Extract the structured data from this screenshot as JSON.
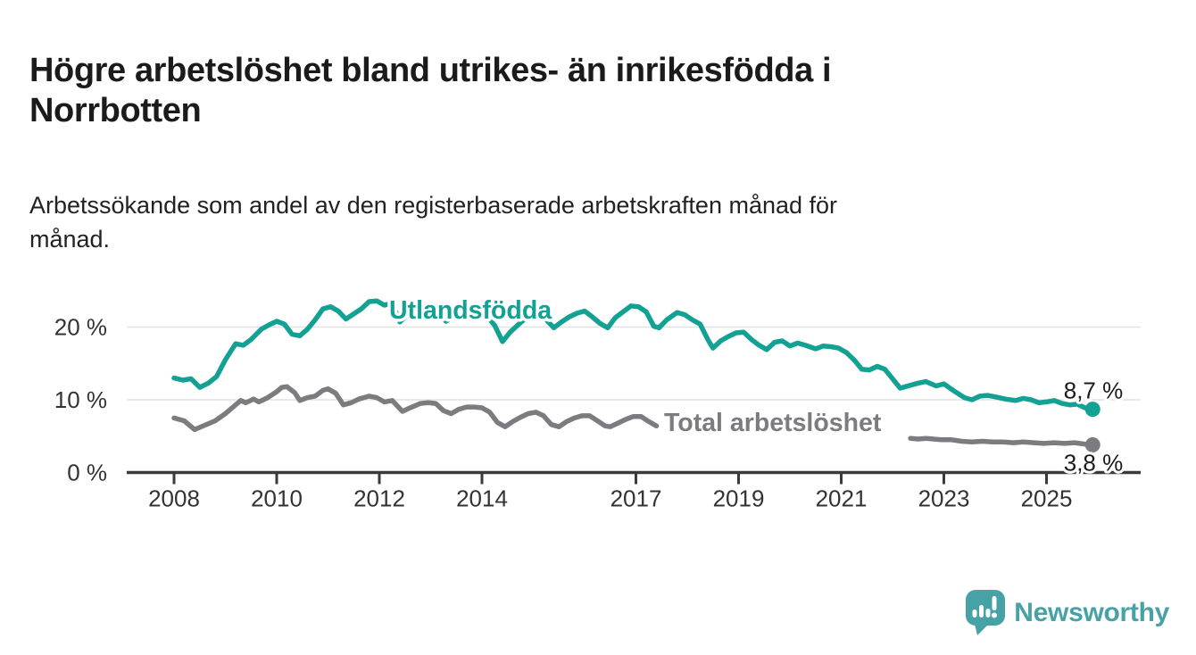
{
  "header": {
    "title_lines": [
      "Högre arbetslöshet bland utrikes- än inrikesfödda i",
      "Norrbotten"
    ],
    "subtitle_lines": [
      "Arbetssökande som andel av den registerbaserade arbetskraften månad för",
      "månad."
    ]
  },
  "footer": {
    "logo_text": "Newsworthy",
    "logo_color": "#47a2a6"
  },
  "chart_data": {
    "type": "line",
    "unit": "%",
    "grid": true,
    "legend_position": "inline-labels",
    "xlim": [
      2007.1,
      2026.8
    ],
    "ylim": [
      0,
      24
    ],
    "x_ticks": [
      {
        "year": 2008,
        "label": "2008"
      },
      {
        "year": 2010,
        "label": "2010"
      },
      {
        "year": 2012,
        "label": "2012"
      },
      {
        "year": 2014,
        "label": "2014"
      },
      {
        "year": 2017,
        "label": "2017"
      },
      {
        "year": 2019,
        "label": "2019"
      },
      {
        "year": 2021,
        "label": "2021"
      },
      {
        "year": 2023,
        "label": "2023"
      },
      {
        "year": 2025,
        "label": "2025"
      }
    ],
    "y_ticks": [
      {
        "value": 0,
        "label": "0 %"
      },
      {
        "value": 10,
        "label": "10 %"
      },
      {
        "value": 20,
        "label": "20 %"
      }
    ],
    "series": [
      {
        "name": "Utlandsfödda",
        "color": "#12a192",
        "end_label": "8,7 %",
        "end_value": 8.7,
        "segments": [
          [
            [
              2008.0,
              13.0
            ],
            [
              2008.17,
              12.7
            ],
            [
              2008.33,
              12.9
            ],
            [
              2008.5,
              11.7
            ],
            [
              2008.67,
              12.3
            ],
            [
              2008.83,
              13.2
            ],
            [
              2009.0,
              15.5
            ],
            [
              2009.2,
              17.7
            ],
            [
              2009.35,
              17.5
            ],
            [
              2009.5,
              18.3
            ],
            [
              2009.7,
              19.7
            ],
            [
              2009.85,
              20.3
            ],
            [
              2010.0,
              20.8
            ],
            [
              2010.15,
              20.4
            ],
            [
              2010.3,
              19.0
            ],
            [
              2010.45,
              18.8
            ],
            [
              2010.6,
              19.7
            ],
            [
              2010.75,
              21.0
            ],
            [
              2010.9,
              22.5
            ],
            [
              2011.05,
              22.8
            ],
            [
              2011.2,
              22.2
            ],
            [
              2011.35,
              21.1
            ],
            [
              2011.5,
              21.8
            ],
            [
              2011.65,
              22.5
            ],
            [
              2011.8,
              23.5
            ],
            [
              2011.95,
              23.6
            ],
            [
              2012.1,
              23.0
            ],
            [
              2012.25,
              23.3
            ],
            [
              2012.4,
              20.7
            ],
            [
              2012.55,
              21.7
            ],
            [
              2012.7,
              22.5
            ],
            [
              2012.85,
              22.9
            ],
            [
              2013.0,
              22.7
            ],
            [
              2013.15,
              21.9
            ],
            [
              2013.3,
              20.8
            ],
            [
              2013.45,
              21.4
            ],
            [
              2013.6,
              22.0
            ],
            [
              2013.8,
              22.4
            ],
            [
              2013.95,
              22.1
            ],
            [
              2014.1,
              21.5
            ],
            [
              2014.25,
              20.2
            ],
            [
              2014.4,
              18.0
            ],
            [
              2014.55,
              19.3
            ],
            [
              2014.7,
              20.3
            ],
            [
              2014.85,
              21.2
            ],
            [
              2015.0,
              22.4
            ],
            [
              2015.2,
              21.4
            ],
            [
              2015.4,
              19.9
            ],
            [
              2015.55,
              20.7
            ],
            [
              2015.7,
              21.4
            ],
            [
              2015.85,
              21.9
            ],
            [
              2016.0,
              22.2
            ],
            [
              2016.15,
              21.4
            ],
            [
              2016.3,
              20.5
            ],
            [
              2016.45,
              19.9
            ],
            [
              2016.6,
              21.3
            ],
            [
              2016.75,
              22.1
            ],
            [
              2016.9,
              22.9
            ],
            [
              2017.05,
              22.8
            ],
            [
              2017.2,
              22.1
            ],
            [
              2017.35,
              20.1
            ],
            [
              2017.45,
              19.9
            ],
            [
              2017.6,
              21.0
            ],
            [
              2017.8,
              22.0
            ],
            [
              2017.95,
              21.7
            ],
            [
              2018.1,
              21.0
            ],
            [
              2018.25,
              20.4
            ],
            [
              2018.4,
              18.3
            ],
            [
              2018.5,
              17.1
            ],
            [
              2018.65,
              18.1
            ],
            [
              2018.8,
              18.7
            ],
            [
              2018.95,
              19.2
            ],
            [
              2019.1,
              19.3
            ],
            [
              2019.25,
              18.3
            ],
            [
              2019.4,
              17.5
            ],
            [
              2019.55,
              16.9
            ],
            [
              2019.7,
              17.9
            ],
            [
              2019.85,
              18.1
            ],
            [
              2020.0,
              17.4
            ],
            [
              2020.15,
              17.8
            ],
            [
              2020.3,
              17.5
            ],
            [
              2020.5,
              17.0
            ],
            [
              2020.65,
              17.4
            ],
            [
              2020.8,
              17.3
            ],
            [
              2020.95,
              17.1
            ],
            [
              2021.1,
              16.5
            ],
            [
              2021.25,
              15.5
            ],
            [
              2021.4,
              14.2
            ],
            [
              2021.55,
              14.1
            ],
            [
              2021.7,
              14.6
            ],
            [
              2021.85,
              14.2
            ],
            [
              2022.0,
              12.9
            ],
            [
              2022.15,
              11.6
            ],
            [
              2022.3,
              11.9
            ],
            [
              2022.5,
              12.3
            ],
            [
              2022.65,
              12.5
            ],
            [
              2022.85,
              11.9
            ],
            [
              2023.0,
              12.2
            ],
            [
              2023.2,
              11.2
            ],
            [
              2023.4,
              10.3
            ],
            [
              2023.55,
              10.0
            ],
            [
              2023.7,
              10.5
            ],
            [
              2023.85,
              10.6
            ],
            [
              2024.0,
              10.4
            ],
            [
              2024.2,
              10.1
            ],
            [
              2024.4,
              9.9
            ],
            [
              2024.55,
              10.2
            ],
            [
              2024.7,
              10.0
            ],
            [
              2024.85,
              9.6
            ],
            [
              2025.0,
              9.7
            ],
            [
              2025.15,
              9.9
            ],
            [
              2025.3,
              9.5
            ],
            [
              2025.45,
              9.3
            ],
            [
              2025.6,
              9.4
            ],
            [
              2025.75,
              8.9
            ],
            [
              2025.9,
              8.7
            ]
          ]
        ]
      },
      {
        "name": "Total arbetslöshet",
        "color": "#7c7b7f",
        "end_label": "3,8 %",
        "end_value": 3.8,
        "segments": [
          [
            [
              2008.0,
              7.5
            ],
            [
              2008.2,
              7.1
            ],
            [
              2008.4,
              5.9
            ],
            [
              2008.6,
              6.5
            ],
            [
              2008.8,
              7.1
            ],
            [
              2009.0,
              8.1
            ],
            [
              2009.2,
              9.3
            ],
            [
              2009.3,
              9.9
            ],
            [
              2009.4,
              9.6
            ],
            [
              2009.55,
              10.1
            ],
            [
              2009.65,
              9.7
            ],
            [
              2009.8,
              10.2
            ],
            [
              2010.0,
              11.1
            ],
            [
              2010.1,
              11.7
            ],
            [
              2010.2,
              11.8
            ],
            [
              2010.35,
              11.0
            ],
            [
              2010.45,
              9.9
            ],
            [
              2010.6,
              10.3
            ],
            [
              2010.75,
              10.5
            ],
            [
              2010.9,
              11.3
            ],
            [
              2011.0,
              11.5
            ],
            [
              2011.15,
              10.9
            ],
            [
              2011.3,
              9.3
            ],
            [
              2011.45,
              9.6
            ],
            [
              2011.6,
              10.1
            ],
            [
              2011.8,
              10.5
            ],
            [
              2011.95,
              10.3
            ],
            [
              2012.1,
              9.7
            ],
            [
              2012.25,
              9.9
            ],
            [
              2012.45,
              8.4
            ],
            [
              2012.6,
              8.9
            ],
            [
              2012.8,
              9.5
            ],
            [
              2012.95,
              9.6
            ],
            [
              2013.1,
              9.5
            ],
            [
              2013.25,
              8.5
            ],
            [
              2013.4,
              8.1
            ],
            [
              2013.55,
              8.7
            ],
            [
              2013.7,
              9.0
            ],
            [
              2013.85,
              9.0
            ],
            [
              2014.0,
              8.9
            ],
            [
              2014.15,
              8.3
            ],
            [
              2014.3,
              6.9
            ],
            [
              2014.45,
              6.3
            ],
            [
              2014.6,
              7.0
            ],
            [
              2014.75,
              7.6
            ],
            [
              2014.9,
              8.1
            ],
            [
              2015.05,
              8.3
            ],
            [
              2015.2,
              7.8
            ],
            [
              2015.35,
              6.6
            ],
            [
              2015.5,
              6.3
            ],
            [
              2015.65,
              7.0
            ],
            [
              2015.8,
              7.5
            ],
            [
              2015.95,
              7.8
            ],
            [
              2016.1,
              7.8
            ],
            [
              2016.25,
              7.1
            ],
            [
              2016.4,
              6.4
            ],
            [
              2016.5,
              6.3
            ],
            [
              2016.65,
              6.8
            ],
            [
              2016.8,
              7.3
            ],
            [
              2016.95,
              7.7
            ],
            [
              2017.1,
              7.7
            ],
            [
              2017.25,
              7.0
            ],
            [
              2017.4,
              6.4
            ]
          ],
          [
            [
              2022.35,
              4.7
            ],
            [
              2022.5,
              4.6
            ],
            [
              2022.65,
              4.7
            ],
            [
              2022.8,
              4.6
            ],
            [
              2022.95,
              4.5
            ],
            [
              2023.15,
              4.5
            ],
            [
              2023.35,
              4.3
            ],
            [
              2023.55,
              4.2
            ],
            [
              2023.75,
              4.3
            ],
            [
              2023.95,
              4.2
            ],
            [
              2024.15,
              4.2
            ],
            [
              2024.35,
              4.1
            ],
            [
              2024.55,
              4.2
            ],
            [
              2024.75,
              4.1
            ],
            [
              2024.95,
              4.0
            ],
            [
              2025.15,
              4.1
            ],
            [
              2025.35,
              4.0
            ],
            [
              2025.55,
              4.1
            ],
            [
              2025.75,
              3.9
            ],
            [
              2025.9,
              3.8
            ]
          ]
        ]
      }
    ]
  }
}
